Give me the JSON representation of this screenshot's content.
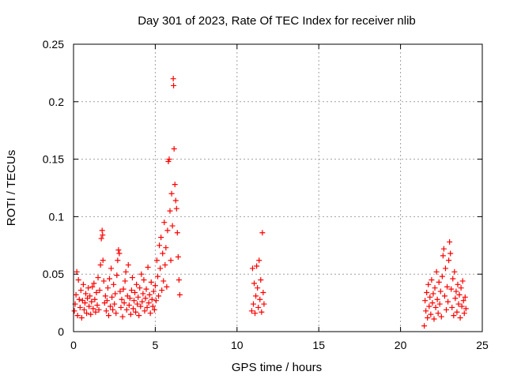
{
  "chart_data": {
    "type": "scatter",
    "title": "Day 301 of 2023, Rate Of TEC Index for receiver nlib",
    "xlabel": "GPS time / hours",
    "ylabel": "ROTI / TECUs",
    "xlim": [
      0,
      25
    ],
    "ylim": [
      0,
      0.25
    ],
    "x_ticks": [
      0,
      5,
      10,
      15,
      20,
      25
    ],
    "y_ticks": [
      0,
      0.05,
      0.1,
      0.15,
      0.2,
      0.25
    ],
    "x_tick_labels": [
      "0",
      "5",
      "10",
      "15",
      "20",
      "25"
    ],
    "y_tick_labels": [
      "0",
      "0.05",
      "0.1",
      "0.15",
      "0.2",
      "0.25"
    ],
    "grid": true,
    "marker": "+",
    "series": [
      {
        "color": "#ff0000",
        "points": [
          [
            0.05,
            0.018
          ],
          [
            0.1,
            0.024
          ],
          [
            0.15,
            0.032
          ],
          [
            0.2,
            0.052
          ],
          [
            0.25,
            0.014
          ],
          [
            0.3,
            0.045
          ],
          [
            0.35,
            0.028
          ],
          [
            0.4,
            0.021
          ],
          [
            0.45,
            0.036
          ],
          [
            0.5,
            0.012
          ],
          [
            0.55,
            0.027
          ],
          [
            0.6,
            0.041
          ],
          [
            0.65,
            0.019
          ],
          [
            0.7,
            0.025
          ],
          [
            0.75,
            0.033
          ],
          [
            0.8,
            0.016
          ],
          [
            0.85,
            0.029
          ],
          [
            0.9,
            0.038
          ],
          [
            0.95,
            0.022
          ],
          [
            1.0,
            0.031
          ],
          [
            1.05,
            0.015
          ],
          [
            1.1,
            0.026
          ],
          [
            1.15,
            0.039
          ],
          [
            1.2,
            0.02
          ],
          [
            1.25,
            0.042
          ],
          [
            1.3,
            0.028
          ],
          [
            1.35,
            0.017
          ],
          [
            1.4,
            0.034
          ],
          [
            1.45,
            0.023
          ],
          [
            1.5,
            0.047
          ],
          [
            1.55,
            0.019
          ],
          [
            1.6,
            0.036
          ],
          [
            1.65,
            0.058
          ],
          [
            1.7,
            0.081
          ],
          [
            1.75,
            0.088
          ],
          [
            1.78,
            0.084
          ],
          [
            1.8,
            0.062
          ],
          [
            1.85,
            0.044
          ],
          [
            1.9,
            0.025
          ],
          [
            1.95,
            0.031
          ],
          [
            2.0,
            0.018
          ],
          [
            2.05,
            0.027
          ],
          [
            2.1,
            0.038
          ],
          [
            2.15,
            0.014
          ],
          [
            2.2,
            0.046
          ],
          [
            2.25,
            0.022
          ],
          [
            2.3,
            0.055
          ],
          [
            2.35,
            0.03
          ],
          [
            2.4,
            0.019
          ],
          [
            2.45,
            0.041
          ],
          [
            2.5,
            0.024
          ],
          [
            2.55,
            0.033
          ],
          [
            2.6,
            0.016
          ],
          [
            2.65,
            0.049
          ],
          [
            2.7,
            0.062
          ],
          [
            2.75,
            0.071
          ],
          [
            2.8,
            0.068
          ],
          [
            2.85,
            0.035
          ],
          [
            2.9,
            0.021
          ],
          [
            2.95,
            0.028
          ],
          [
            3.0,
            0.013
          ],
          [
            3.05,
            0.037
          ],
          [
            3.1,
            0.025
          ],
          [
            3.15,
            0.044
          ],
          [
            3.2,
            0.052
          ],
          [
            3.25,
            0.019
          ],
          [
            3.3,
            0.031
          ],
          [
            3.35,
            0.058
          ],
          [
            3.4,
            0.023
          ],
          [
            3.45,
            0.029
          ],
          [
            3.5,
            0.015
          ],
          [
            3.55,
            0.036
          ],
          [
            3.6,
            0.047
          ],
          [
            3.65,
            0.02
          ],
          [
            3.7,
            0.027
          ],
          [
            3.75,
            0.034
          ],
          [
            3.8,
            0.017
          ],
          [
            3.85,
            0.041
          ],
          [
            3.9,
            0.024
          ],
          [
            3.95,
            0.03
          ],
          [
            4.0,
            0.014
          ],
          [
            4.05,
            0.038
          ],
          [
            4.1,
            0.022
          ],
          [
            4.15,
            0.05
          ],
          [
            4.2,
            0.026
          ],
          [
            4.25,
            0.033
          ],
          [
            4.3,
            0.045
          ],
          [
            4.35,
            0.018
          ],
          [
            4.4,
            0.029
          ],
          [
            4.45,
            0.037
          ],
          [
            4.5,
            0.021
          ],
          [
            4.55,
            0.056
          ],
          [
            4.6,
            0.025
          ],
          [
            4.65,
            0.032
          ],
          [
            4.7,
            0.016
          ],
          [
            4.75,
            0.043
          ],
          [
            4.8,
            0.028
          ],
          [
            4.85,
            0.022
          ],
          [
            4.9,
            0.035
          ],
          [
            4.95,
            0.019
          ],
          [
            5.0,
            0.04
          ],
          [
            5.05,
            0.027
          ],
          [
            5.1,
            0.062
          ],
          [
            5.15,
            0.048
          ],
          [
            5.2,
            0.031
          ],
          [
            5.25,
            0.075
          ],
          [
            5.3,
            0.055
          ],
          [
            5.35,
            0.082
          ],
          [
            5.4,
            0.036
          ],
          [
            5.45,
            0.068
          ],
          [
            5.5,
            0.044
          ],
          [
            5.55,
            0.095
          ],
          [
            5.6,
            0.058
          ],
          [
            5.65,
            0.073
          ],
          [
            5.7,
            0.039
          ],
          [
            5.75,
            0.088
          ],
          [
            5.8,
            0.148
          ],
          [
            5.85,
            0.15
          ],
          [
            5.9,
            0.105
          ],
          [
            5.95,
            0.062
          ],
          [
            6.0,
            0.12
          ],
          [
            6.05,
            0.092
          ],
          [
            6.1,
            0.22
          ],
          [
            6.12,
            0.214
          ],
          [
            6.15,
            0.159
          ],
          [
            6.2,
            0.128
          ],
          [
            6.25,
            0.114
          ],
          [
            6.3,
            0.107
          ],
          [
            6.35,
            0.086
          ],
          [
            6.4,
            0.065
          ],
          [
            6.45,
            0.045
          ],
          [
            6.5,
            0.032
          ],
          [
            10.9,
            0.018
          ],
          [
            10.95,
            0.055
          ],
          [
            11.0,
            0.024
          ],
          [
            11.05,
            0.042
          ],
          [
            11.1,
            0.016
          ],
          [
            11.15,
            0.031
          ],
          [
            11.2,
            0.057
          ],
          [
            11.25,
            0.038
          ],
          [
            11.3,
            0.021
          ],
          [
            11.35,
            0.062
          ],
          [
            11.4,
            0.028
          ],
          [
            11.45,
            0.045
          ],
          [
            11.5,
            0.017
          ],
          [
            11.55,
            0.086
          ],
          [
            11.6,
            0.034
          ],
          [
            11.65,
            0.024
          ],
          [
            21.45,
            0.005
          ],
          [
            21.5,
            0.027
          ],
          [
            21.55,
            0.018
          ],
          [
            21.6,
            0.034
          ],
          [
            21.65,
            0.012
          ],
          [
            21.7,
            0.041
          ],
          [
            21.75,
            0.022
          ],
          [
            21.8,
            0.03
          ],
          [
            21.85,
            0.015
          ],
          [
            21.9,
            0.045
          ],
          [
            21.95,
            0.025
          ],
          [
            22.0,
            0.033
          ],
          [
            22.05,
            0.011
          ],
          [
            22.1,
            0.038
          ],
          [
            22.15,
            0.021
          ],
          [
            22.2,
            0.052
          ],
          [
            22.25,
            0.028
          ],
          [
            22.3,
            0.016
          ],
          [
            22.35,
            0.043
          ],
          [
            22.4,
            0.024
          ],
          [
            22.45,
            0.035
          ],
          [
            22.5,
            0.013
          ],
          [
            22.55,
            0.048
          ],
          [
            22.6,
            0.066
          ],
          [
            22.65,
            0.072
          ],
          [
            22.7,
            0.031
          ],
          [
            22.75,
            0.055
          ],
          [
            22.8,
            0.019
          ],
          [
            22.85,
            0.039
          ],
          [
            22.9,
            0.026
          ],
          [
            22.95,
            0.062
          ],
          [
            23.0,
            0.078
          ],
          [
            23.05,
            0.068
          ],
          [
            23.1,
            0.037
          ],
          [
            23.15,
            0.021
          ],
          [
            23.2,
            0.046
          ],
          [
            23.25,
            0.014
          ],
          [
            23.3,
            0.052
          ],
          [
            23.35,
            0.029
          ],
          [
            23.4,
            0.035
          ],
          [
            23.45,
            0.017
          ],
          [
            23.5,
            0.041
          ],
          [
            23.55,
            0.024
          ],
          [
            23.6,
            0.032
          ],
          [
            23.65,
            0.012
          ],
          [
            23.7,
            0.038
          ],
          [
            23.75,
            0.022
          ],
          [
            23.8,
            0.044
          ],
          [
            23.85,
            0.027
          ],
          [
            23.9,
            0.016
          ],
          [
            23.95,
            0.03
          ],
          [
            24.0,
            0.02
          ]
        ]
      }
    ]
  }
}
